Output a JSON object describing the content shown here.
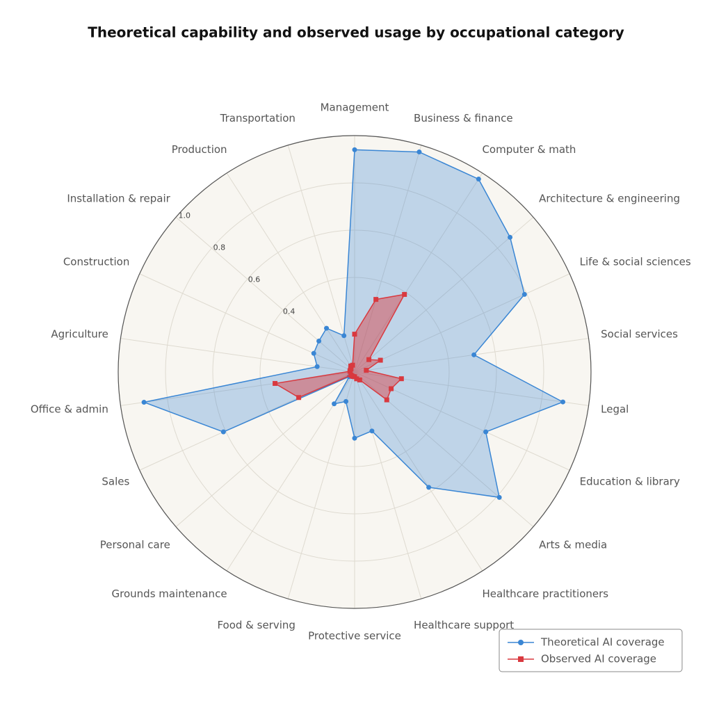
{
  "chart_data": {
    "type": "radar",
    "title": "Theoretical capability and observed usage by occupational category",
    "categories": [
      "Management",
      "Business & finance",
      "Computer & math",
      "Architecture & engineering",
      "Life & social sciences",
      "Social services",
      "Legal",
      "Education & library",
      "Arts & media",
      "Healthcare practitioners",
      "Healthcare support",
      "Protective service",
      "Food & serving",
      "Grounds maintenance",
      "Personal care",
      "Sales",
      "Office & admin",
      "Agriculture",
      "Construction",
      "Installation & repair",
      "Production",
      "Transportation"
    ],
    "series": [
      {
        "name": "Theoretical AI coverage",
        "color": "#3a86d4",
        "values": [
          0.94,
          0.97,
          0.97,
          0.87,
          0.79,
          0.51,
          0.89,
          0.61,
          0.81,
          0.58,
          0.26,
          0.28,
          0.13,
          0.16,
          0.03,
          0.61,
          0.9,
          0.16,
          0.19,
          0.2,
          0.22,
          0.16
        ]
      },
      {
        "name": "Observed AI coverage",
        "color": "#d9393f",
        "values": [
          0.16,
          0.32,
          0.39,
          0.08,
          0.12,
          0.05,
          0.2,
          0.17,
          0.18,
          0.04,
          0.03,
          0.02,
          0.02,
          0.02,
          0.02,
          0.26,
          0.34,
          0.02,
          0.02,
          0.02,
          0.03,
          0.03
        ]
      }
    ],
    "ylim": [
      0,
      1
    ],
    "yticks": [
      0.4,
      0.6,
      0.8,
      {
        "value": 1,
        "label": "1.0"
      }
    ],
    "grid": true,
    "legend": "lower right"
  }
}
